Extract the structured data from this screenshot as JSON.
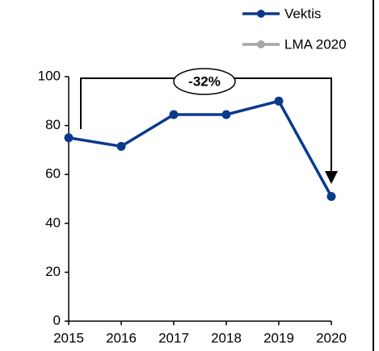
{
  "chart_data": {
    "type": "line",
    "x": [
      2015,
      2016,
      2017,
      2018,
      2019,
      2020
    ],
    "series": [
      {
        "name": "Vektis",
        "color": "#0b3a8c",
        "values": [
          75,
          71.5,
          84.5,
          84.5,
          90,
          51
        ]
      },
      {
        "name": "LMA 2020",
        "color": "#a6a6a6",
        "values": [
          null,
          null,
          null,
          null,
          null,
          null
        ]
      }
    ],
    "xlim": [
      2015,
      2020
    ],
    "xticks": [
      2015,
      2016,
      2017,
      2018,
      2019,
      2020
    ],
    "ylim": [
      0,
      100
    ],
    "yticks": [
      0,
      20,
      40,
      60,
      80,
      100
    ],
    "annotations": [
      "-32%"
    ],
    "legend": "top-right"
  }
}
